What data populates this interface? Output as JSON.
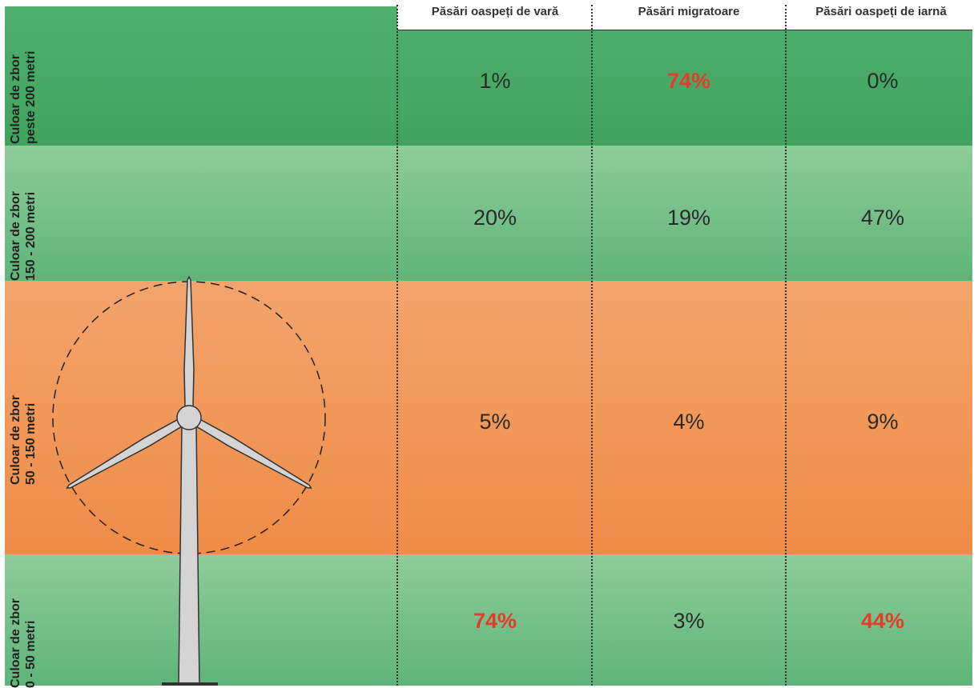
{
  "columns": [
    "Păsări oaspeți de vară",
    "Păsări migratoare",
    "Păsări oaspeți de iarnă"
  ],
  "rows": [
    {
      "label_line1": "Culoar de zbor",
      "label_line2": "peste 200 metri",
      "values": [
        "1%",
        "74%",
        "0%"
      ],
      "highlight": [
        false,
        true,
        false
      ]
    },
    {
      "label_line1": "Culoar de zbor",
      "label_line2": "150 - 200 metri",
      "values": [
        "20%",
        "19%",
        "47%"
      ],
      "highlight": [
        false,
        false,
        false
      ]
    },
    {
      "label_line1": "Culoar de zbor",
      "label_line2": "50 - 150 metri",
      "values": [
        "5%",
        "4%",
        "9%"
      ],
      "highlight": [
        false,
        false,
        false
      ]
    },
    {
      "label_line1": "Culoar de zbor",
      "label_line2": "0 - 50 metri",
      "values": [
        "74%",
        "3%",
        "44%"
      ],
      "highlight": [
        true,
        false,
        true
      ]
    }
  ],
  "colors": {
    "band_high": "#3fa35d",
    "band_mid": "#5fb47a",
    "band_rotor": "#ef8c47",
    "highlight_text": "#e63a2a"
  },
  "illustration": "wind-turbine"
}
